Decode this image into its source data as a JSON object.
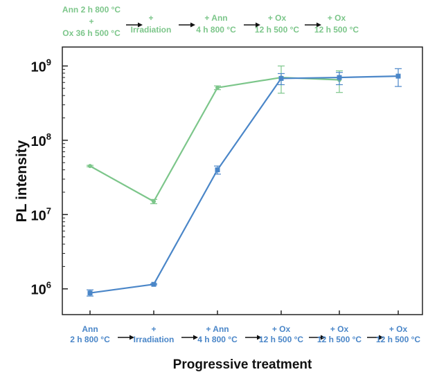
{
  "chart_data": {
    "type": "line",
    "title": "",
    "xlabel": "Progressive treatment",
    "ylabel": "PL intensity",
    "y_scale": "log",
    "ylim": [
      450000,
      1800000000
    ],
    "y_ticks": [
      {
        "value": 1000000,
        "base": "10",
        "exp": "6"
      },
      {
        "value": 10000000,
        "base": "10",
        "exp": "7"
      },
      {
        "value": 100000000,
        "base": "10",
        "exp": "8"
      },
      {
        "value": 1000000000,
        "base": "10",
        "exp": "9"
      }
    ],
    "bottom_categories": [
      [
        "Ann",
        "2 h 800 °C"
      ],
      [
        "+",
        "Irradiation"
      ],
      [
        "+ Ann",
        "4 h 800 °C"
      ],
      [
        "+ Ox",
        "12 h 500 °C"
      ],
      [
        "+ Ox",
        "12 h 500 °C"
      ],
      [
        "+ Ox",
        "12 h 500 °C"
      ]
    ],
    "top_categories": [
      [
        "Ann 2 h 800 °C",
        "+",
        "Ox 36 h 500 °C"
      ],
      [
        "+",
        "Irradiation"
      ],
      [
        "+ Ann",
        "4 h 800 °C"
      ],
      [
        "+ Ox",
        "12 h 500 °C"
      ],
      [
        "+ Ox",
        "12 h 500 °C"
      ]
    ],
    "grid": false,
    "series": [
      {
        "color": "#7cc68a",
        "marker": "circle",
        "axis": "top",
        "x": [
          0,
          1,
          2,
          3,
          4
        ],
        "values": [
          45000000,
          15000000,
          510000000,
          700000000,
          650000000
        ],
        "err_low": [
          44000000,
          14000000,
          480000000,
          430000000,
          440000000
        ],
        "err_high": [
          46000000,
          16000000,
          540000000,
          1000000000,
          860000000
        ]
      },
      {
        "color": "#4a86c8",
        "marker": "square",
        "axis": "bottom",
        "x": [
          0,
          1,
          2,
          3,
          4,
          5
        ],
        "values": [
          880000,
          1150000,
          40000000,
          680000000,
          700000000,
          730000000
        ],
        "err_low": [
          800000,
          1130000,
          35000000,
          560000000,
          560000000,
          530000000
        ],
        "err_high": [
          970000,
          1170000,
          45000000,
          790000000,
          820000000,
          920000000
        ]
      }
    ]
  }
}
